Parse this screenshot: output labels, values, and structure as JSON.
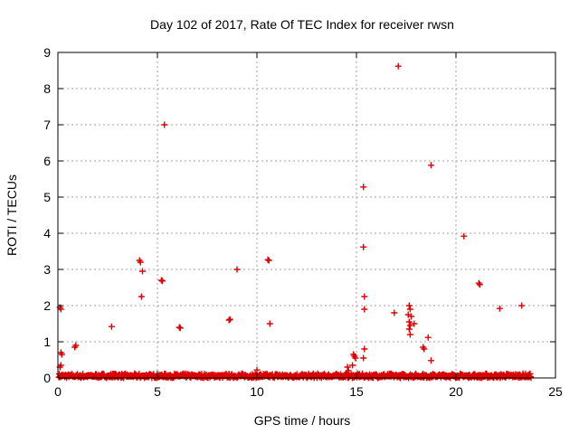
{
  "chart_data": {
    "type": "scatter",
    "title": "Day 102 of 2017, Rate Of TEC Index for receiver rwsn",
    "xlabel": "GPS time / hours",
    "ylabel": "ROTI / TECUs",
    "xlim": [
      0,
      25
    ],
    "ylim": [
      0,
      9
    ],
    "xticks": [
      0,
      5,
      10,
      15,
      20,
      25
    ],
    "yticks": [
      0,
      1,
      2,
      3,
      4,
      5,
      6,
      7,
      8,
      9
    ],
    "grid": true,
    "marker": "plus",
    "color": "#dd0000",
    "series": [
      {
        "name": "ROTI",
        "points": [
          [
            0.1,
            1.95
          ],
          [
            0.15,
            1.9
          ],
          [
            0.15,
            0.7
          ],
          [
            0.2,
            0.65
          ],
          [
            0.15,
            0.35
          ],
          [
            0.1,
            0.3
          ],
          [
            0.9,
            0.9
          ],
          [
            0.85,
            0.85
          ],
          [
            2.7,
            1.42
          ],
          [
            4.1,
            3.25
          ],
          [
            4.15,
            3.2
          ],
          [
            4.25,
            2.95
          ],
          [
            4.2,
            2.25
          ],
          [
            5.2,
            2.7
          ],
          [
            5.25,
            2.68
          ],
          [
            5.35,
            7.0
          ],
          [
            6.1,
            1.4
          ],
          [
            6.15,
            1.38
          ],
          [
            8.6,
            1.6
          ],
          [
            8.65,
            1.62
          ],
          [
            9.0,
            3.0
          ],
          [
            10.0,
            0.22
          ],
          [
            10.55,
            3.27
          ],
          [
            10.6,
            3.25
          ],
          [
            10.65,
            1.5
          ],
          [
            14.55,
            0.3
          ],
          [
            14.6,
            0.2
          ],
          [
            14.85,
            0.65
          ],
          [
            14.9,
            0.6
          ],
          [
            14.95,
            0.55
          ],
          [
            14.8,
            0.35
          ],
          [
            15.35,
            5.28
          ],
          [
            15.35,
            3.62
          ],
          [
            15.4,
            2.25
          ],
          [
            15.4,
            1.9
          ],
          [
            15.4,
            0.8
          ],
          [
            15.35,
            0.55
          ],
          [
            16.9,
            1.8
          ],
          [
            17.1,
            8.62
          ],
          [
            17.65,
            2.0
          ],
          [
            17.7,
            1.9
          ],
          [
            17.6,
            1.75
          ],
          [
            17.75,
            1.7
          ],
          [
            17.65,
            1.55
          ],
          [
            17.7,
            1.45
          ],
          [
            17.65,
            1.35
          ],
          [
            17.7,
            1.2
          ],
          [
            17.9,
            1.5
          ],
          [
            18.35,
            0.85
          ],
          [
            18.4,
            0.8
          ],
          [
            18.6,
            1.12
          ],
          [
            18.75,
            5.88
          ],
          [
            18.75,
            0.48
          ],
          [
            20.4,
            3.92
          ],
          [
            21.15,
            2.62
          ],
          [
            21.2,
            2.58
          ],
          [
            22.2,
            1.92
          ],
          [
            23.3,
            2.0
          ]
        ],
        "baseline_band": {
          "x_range": [
            0.05,
            23.75
          ],
          "y_max": 0.12
        }
      }
    ]
  }
}
